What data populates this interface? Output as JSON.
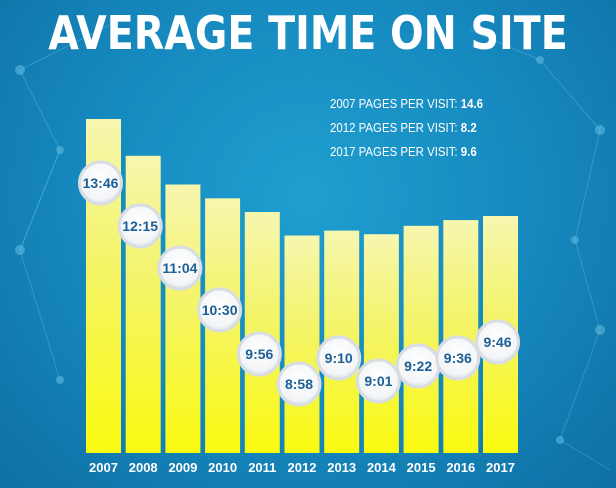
{
  "chart_data": {
    "type": "bar",
    "title": "AVERAGE TIME ON SITE",
    "categories": [
      "2007",
      "2008",
      "2009",
      "2010",
      "2011",
      "2012",
      "2013",
      "2014",
      "2015",
      "2016",
      "2017"
    ],
    "values_seconds": [
      826,
      735,
      664,
      630,
      596,
      538,
      550,
      541,
      562,
      576,
      586
    ],
    "data_labels": [
      "13:46",
      "12:15",
      "11:04",
      "10:30",
      "9:56",
      "8:58",
      "9:10",
      "9:01",
      "9:22",
      "9:36",
      "9:46"
    ],
    "bar_color_top": "#f4f46a",
    "bar_color_bottom": "#fafa1e",
    "background_color": "#1587bd",
    "label_color": "#1b5f96"
  },
  "stats": [
    {
      "label": "2007 PAGES PER VISIT: ",
      "value": "14.6"
    },
    {
      "label": "2012 PAGES PER VISIT: ",
      "value": "8.2"
    },
    {
      "label": "2017 PAGES PER VISIT: ",
      "value": "9.6"
    }
  ]
}
